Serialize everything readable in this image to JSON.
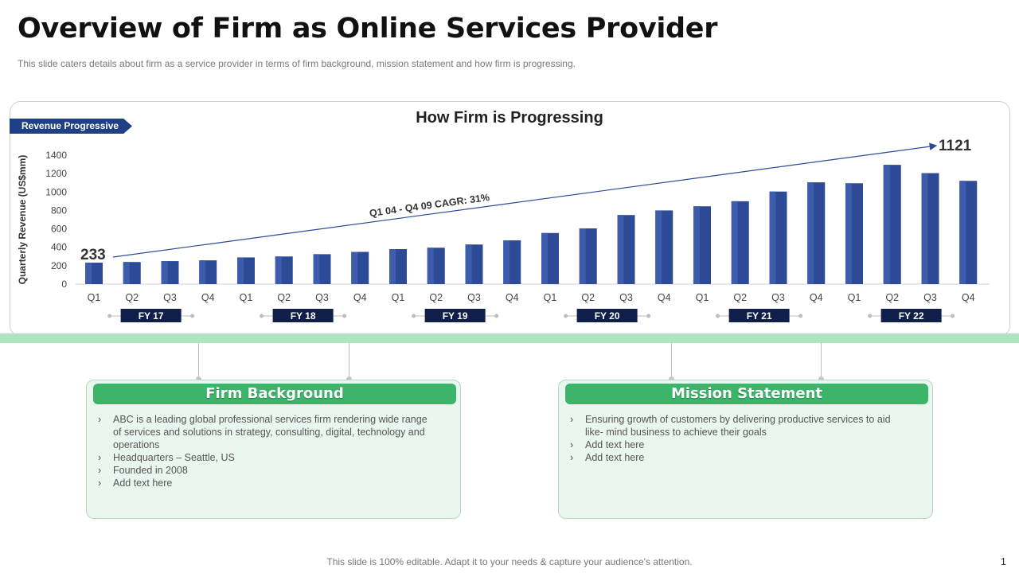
{
  "slide": {
    "title": "Overview of Firm as Online Services Provider",
    "subtitle": "This slide caters details about firm as a service provider  in terms of firm background,  mission statement and how firm is progressing.",
    "footer": "This slide is 100% editable. Adapt it to your needs & capture your audience's attention.",
    "page_number": "1"
  },
  "revenue_tag": "Revenue Progressive",
  "chart_heading": "How Firm is Progressing",
  "chart_data": {
    "type": "bar",
    "title": "How Firm is Progressing",
    "ylabel": "Quarterly Revenue (US$mm)",
    "xlabel": "",
    "ylim": [
      0,
      1400
    ],
    "yticks": [
      0,
      200,
      400,
      600,
      800,
      1000,
      1200,
      1400
    ],
    "categories": [
      "Q1",
      "Q2",
      "Q3",
      "Q4",
      "Q1",
      "Q2",
      "Q3",
      "Q4",
      "Q1",
      "Q2",
      "Q3",
      "Q4",
      "Q1",
      "Q2",
      "Q3",
      "Q4",
      "Q1",
      "Q2",
      "Q3",
      "Q4",
      "Q1",
      "Q2",
      "Q3",
      "Q4"
    ],
    "groups": [
      "FY 17",
      "FY 18",
      "FY 19",
      "FY 20",
      "FY 21",
      "FY 22"
    ],
    "values": [
      233,
      240,
      250,
      258,
      290,
      300,
      325,
      350,
      380,
      395,
      430,
      475,
      555,
      605,
      750,
      800,
      845,
      900,
      1005,
      1105,
      1095,
      1295,
      1205,
      1121
    ],
    "bar_color": "#2c4a96",
    "grid": false,
    "annotations": {
      "start_value": "233",
      "end_value": "1121",
      "trend_label": "Q1 04 - Q4 09 CAGR: 31%"
    }
  },
  "firm_background": {
    "title": "Firm Background",
    "items": [
      "ABC is a leading global professional services firm rendering wide range of services and solutions in strategy, consulting, digital, technology and operations",
      "Headquarters  – Seattle, US",
      "Founded  in 2008",
      "Add text here"
    ]
  },
  "mission_statement": {
    "title": "Mission Statement",
    "items": [
      "Ensuring growth of customers by delivering  productive  services  to aid like- mind business to achieve  their goals",
      "Add text here",
      "Add text here"
    ]
  },
  "colors": {
    "title_text": "#111111",
    "accent_blue": "#1f3f86",
    "fy_badge": "#0f1f4a",
    "card_header_green": "#3cb56a",
    "card_background": "#eaf7ee",
    "band_green": "#aee5c0"
  }
}
